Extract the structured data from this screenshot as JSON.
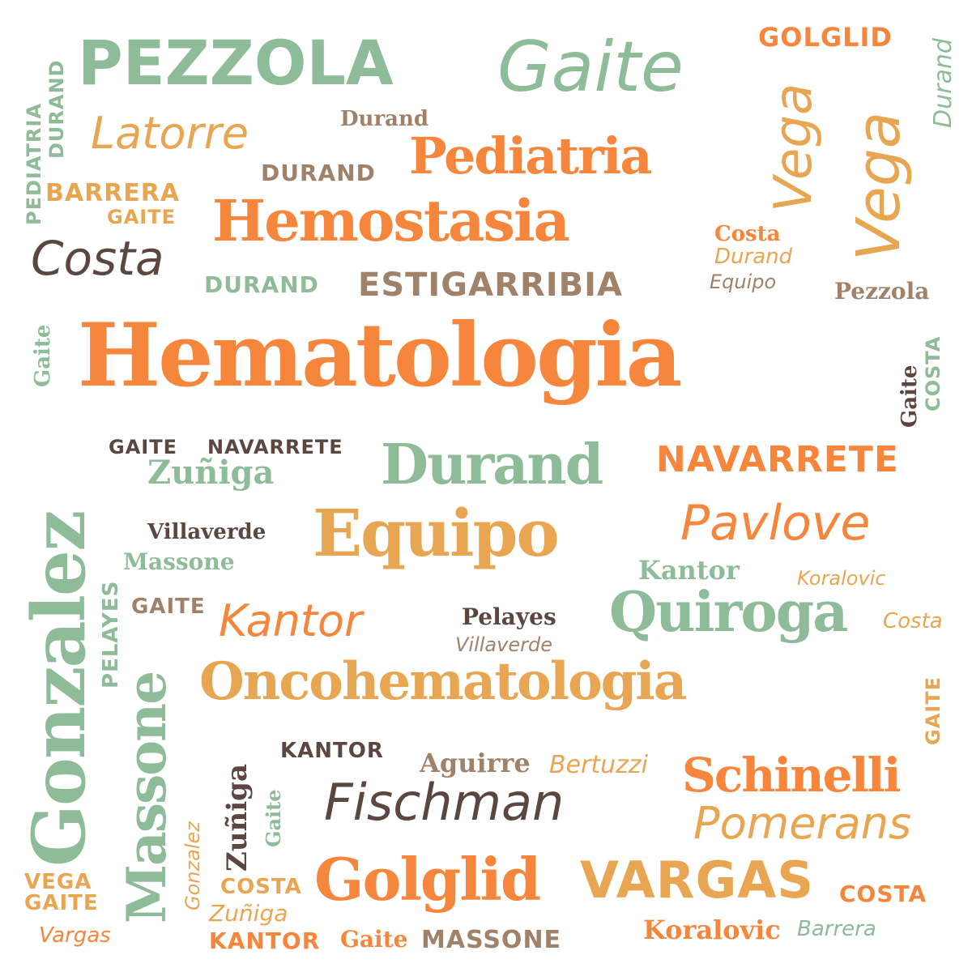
{
  "colors": {
    "background": "#ffffff",
    "orange": "#f5863c",
    "light_orange": "#e8a652",
    "green": "#8ebb98",
    "brown": "#5c4640",
    "tan": "#a0826a"
  },
  "words": [
    {
      "text": "Hematologia",
      "color": "orange"
    },
    {
      "text": "Oncohematologia",
      "color": "light_orange"
    },
    {
      "text": "Hemostasia",
      "color": "orange"
    },
    {
      "text": "Pediatria",
      "color": "orange"
    },
    {
      "text": "PEZZOLA",
      "color": "green"
    },
    {
      "text": "Gaite",
      "color": "green"
    },
    {
      "text": "GOLGLID",
      "color": "orange"
    },
    {
      "text": "Durand",
      "color": "green"
    },
    {
      "text": "Vega",
      "color": "light_orange"
    },
    {
      "text": "Vega",
      "color": "light_orange"
    },
    {
      "text": "PEDIATRIA",
      "color": "green"
    },
    {
      "text": "DURAND",
      "color": "green"
    },
    {
      "text": "Latorre",
      "color": "light_orange"
    },
    {
      "text": "Durand",
      "color": "tan"
    },
    {
      "text": "DURAND",
      "color": "tan"
    },
    {
      "text": "BARRERA",
      "color": "light_orange"
    },
    {
      "text": "GAITE",
      "color": "light_orange"
    },
    {
      "text": "Costa",
      "color": "brown"
    },
    {
      "text": "DURAND",
      "color": "green"
    },
    {
      "text": "ESTIGARRIBIA",
      "color": "tan"
    },
    {
      "text": "Costa",
      "color": "orange"
    },
    {
      "text": "Durand",
      "color": "light_orange"
    },
    {
      "text": "Equipo",
      "color": "tan"
    },
    {
      "text": "Pezzola",
      "color": "tan"
    },
    {
      "text": "Gaite",
      "color": "green"
    },
    {
      "text": "Gaite",
      "color": "brown"
    },
    {
      "text": "COSTA",
      "color": "green"
    },
    {
      "text": "GAITE",
      "color": "brown"
    },
    {
      "text": "NAVARRETE",
      "color": "brown"
    },
    {
      "text": "Zuñiga",
      "color": "green"
    },
    {
      "text": "Durand",
      "color": "green"
    },
    {
      "text": "NAVARRETE",
      "color": "orange"
    },
    {
      "text": "Gonzalez",
      "color": "green"
    },
    {
      "text": "Villaverde",
      "color": "brown"
    },
    {
      "text": "Equipo",
      "color": "light_orange"
    },
    {
      "text": "Pavlove",
      "color": "orange"
    },
    {
      "text": "Massone",
      "color": "green"
    },
    {
      "text": "Kantor",
      "color": "green"
    },
    {
      "text": "Koralovic",
      "color": "light_orange"
    },
    {
      "text": "PELAYES",
      "color": "green"
    },
    {
      "text": "GAITE",
      "color": "tan"
    },
    {
      "text": "Kantor",
      "color": "orange"
    },
    {
      "text": "Pelayes",
      "color": "brown"
    },
    {
      "text": "Villaverde",
      "color": "tan"
    },
    {
      "text": "Quiroga",
      "color": "green"
    },
    {
      "text": "Costa",
      "color": "light_orange"
    },
    {
      "text": "Massone",
      "color": "green"
    },
    {
      "text": "GAITE",
      "color": "light_orange"
    },
    {
      "text": "KANTOR",
      "color": "brown"
    },
    {
      "text": "Aguirre",
      "color": "tan"
    },
    {
      "text": "Bertuzzi",
      "color": "light_orange"
    },
    {
      "text": "Schinelli",
      "color": "orange"
    },
    {
      "text": "Zuñiga",
      "color": "brown"
    },
    {
      "text": "Gaite",
      "color": "green"
    },
    {
      "text": "Fischman",
      "color": "brown"
    },
    {
      "text": "Pomerans",
      "color": "light_orange"
    },
    {
      "text": "Gonzalez",
      "color": "light_orange"
    },
    {
      "text": "VEGA",
      "color": "light_orange"
    },
    {
      "text": "GAITE",
      "color": "light_orange"
    },
    {
      "text": "COSTA",
      "color": "light_orange"
    },
    {
      "text": "Golglid",
      "color": "orange"
    },
    {
      "text": "VARGAS",
      "color": "light_orange"
    },
    {
      "text": "COSTA",
      "color": "orange"
    },
    {
      "text": "Zuñiga",
      "color": "light_orange"
    },
    {
      "text": "Vargas",
      "color": "orange"
    },
    {
      "text": "KANTOR",
      "color": "orange"
    },
    {
      "text": "Gaite",
      "color": "orange"
    },
    {
      "text": "MASSONE",
      "color": "tan"
    },
    {
      "text": "Koralovic",
      "color": "orange"
    },
    {
      "text": "Barrera",
      "color": "green"
    }
  ]
}
